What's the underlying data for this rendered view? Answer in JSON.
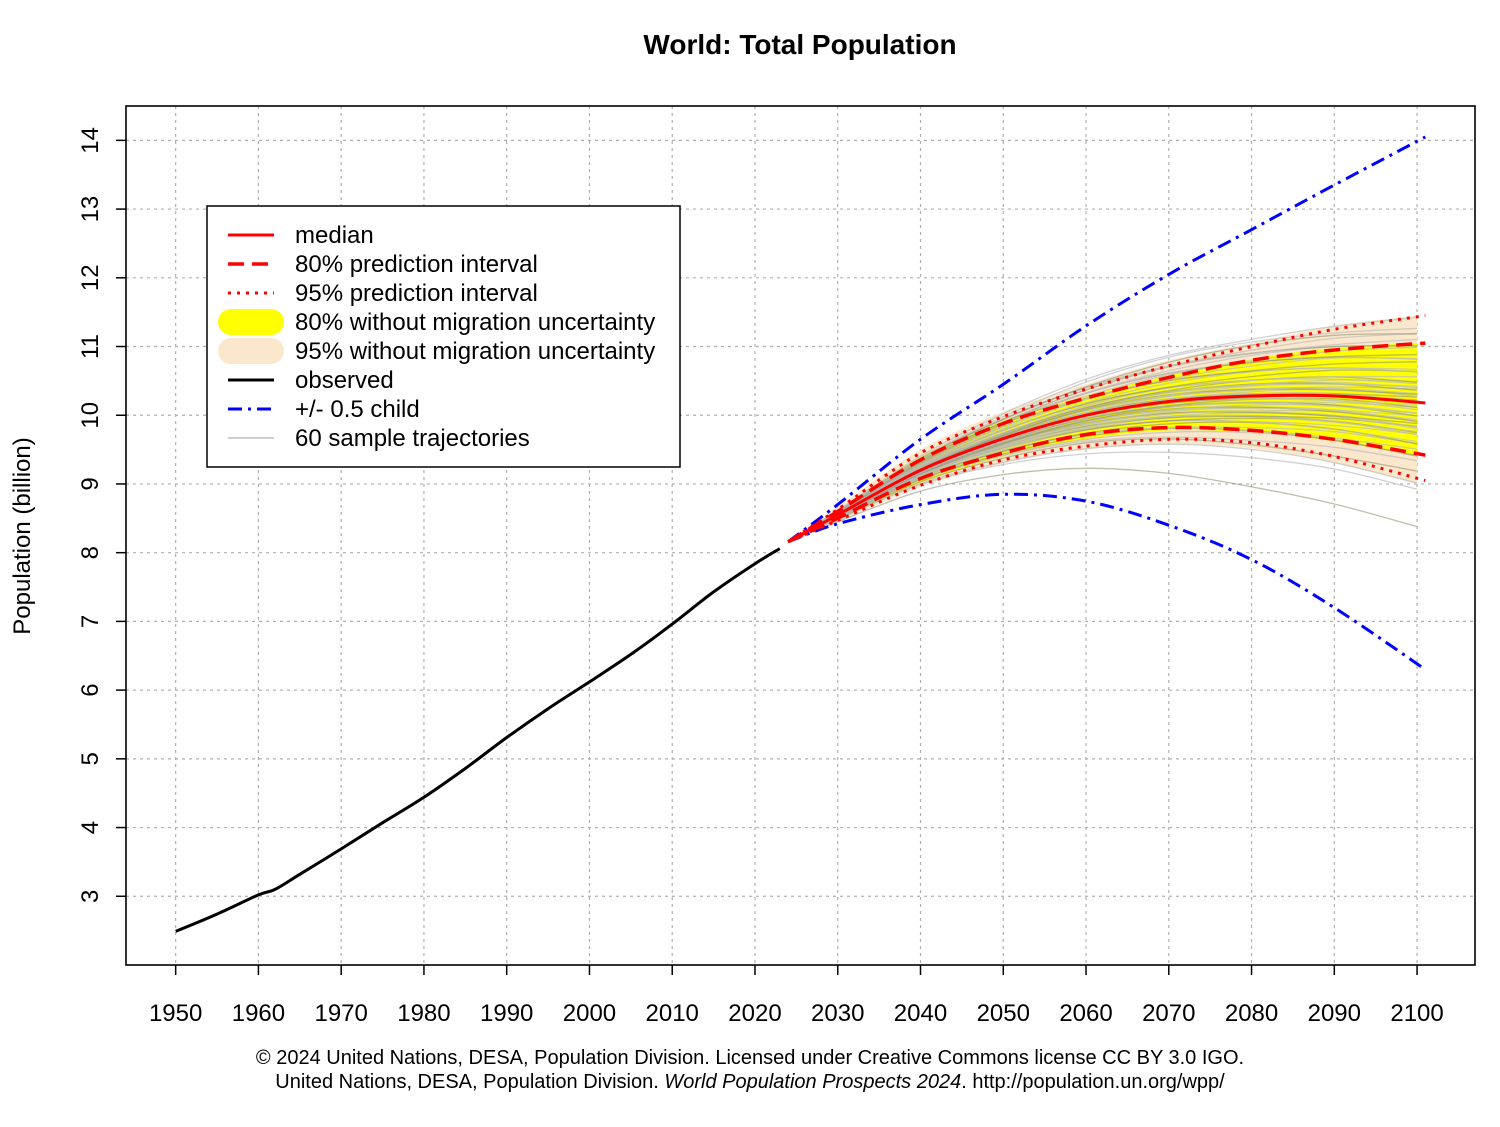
{
  "chart_data": {
    "type": "line",
    "title": "World: Total Population",
    "ylabel": "Population (billion)",
    "xlabel": "",
    "xlim": [
      1944,
      2107
    ],
    "ylim": [
      2.0,
      14.5
    ],
    "x_ticks": [
      1950,
      1960,
      1970,
      1980,
      1990,
      2000,
      2010,
      2020,
      2030,
      2040,
      2050,
      2060,
      2070,
      2080,
      2090,
      2100
    ],
    "y_ticks": [
      3,
      4,
      5,
      6,
      7,
      8,
      9,
      10,
      11,
      12,
      13,
      14
    ],
    "grid": true,
    "legend_position": "top-left",
    "legend": [
      {
        "label": "median",
        "key": "median"
      },
      {
        "label": "80% prediction interval",
        "key": "pi80"
      },
      {
        "label": "95% prediction interval",
        "key": "pi95"
      },
      {
        "label": "80% without migration uncertainty",
        "key": "nm80"
      },
      {
        "label": "95% without migration uncertainty",
        "key": "nm95"
      },
      {
        "label": "observed",
        "key": "observed"
      },
      {
        "label": "+/- 0.5 child",
        "key": "halfchild"
      },
      {
        "label": "60 sample trajectories",
        "key": "samples"
      }
    ],
    "colors": {
      "median": "#ff0000",
      "interval": "#ff0000",
      "observed": "#000000",
      "halfchild": "#0000ff",
      "nm80": "#ffff00",
      "nm95": "#fbe7cc",
      "samples": "#bdbdbd"
    },
    "series": {
      "observed": {
        "x": [
          1950,
          1955,
          1960,
          1962,
          1965,
          1970,
          1975,
          1980,
          1985,
          1990,
          1995,
          2000,
          2005,
          2010,
          2015,
          2020,
          2023
        ],
        "y": [
          2.49,
          2.74,
          3.02,
          3.1,
          3.32,
          3.69,
          4.07,
          4.44,
          4.86,
          5.31,
          5.73,
          6.12,
          6.52,
          6.96,
          7.43,
          7.84,
          8.06
        ]
      },
      "median": {
        "x": [
          2024,
          2030,
          2040,
          2050,
          2060,
          2070,
          2080,
          2090,
          2101
        ],
        "y": [
          8.16,
          8.55,
          9.2,
          9.66,
          10.0,
          10.2,
          10.28,
          10.28,
          10.18
        ]
      },
      "pi80_upper": {
        "x": [
          2024,
          2030,
          2040,
          2050,
          2060,
          2070,
          2080,
          2090,
          2101
        ],
        "y": [
          8.16,
          8.6,
          9.35,
          9.88,
          10.25,
          10.55,
          10.8,
          10.95,
          11.05
        ]
      },
      "pi80_lower": {
        "x": [
          2024,
          2030,
          2040,
          2050,
          2060,
          2070,
          2080,
          2090,
          2101
        ],
        "y": [
          8.16,
          8.5,
          9.08,
          9.45,
          9.72,
          9.82,
          9.78,
          9.65,
          9.42
        ]
      },
      "pi95_upper": {
        "x": [
          2024,
          2030,
          2040,
          2050,
          2060,
          2070,
          2080,
          2090,
          2101
        ],
        "y": [
          8.16,
          8.63,
          9.45,
          9.98,
          10.38,
          10.72,
          11.0,
          11.25,
          11.45
        ]
      },
      "pi95_lower": {
        "x": [
          2024,
          2030,
          2040,
          2050,
          2060,
          2070,
          2080,
          2090,
          2101
        ],
        "y": [
          8.16,
          8.47,
          8.98,
          9.35,
          9.55,
          9.65,
          9.6,
          9.4,
          9.05
        ]
      },
      "halfchild_upper": {
        "x": [
          2024,
          2030,
          2040,
          2050,
          2060,
          2070,
          2080,
          2090,
          2101
        ],
        "y": [
          8.16,
          8.7,
          9.65,
          10.45,
          11.3,
          12.05,
          12.7,
          13.35,
          14.05
        ]
      },
      "halfchild_lower": {
        "x": [
          2024,
          2030,
          2040,
          2050,
          2060,
          2070,
          2080,
          2090,
          2101
        ],
        "y": [
          8.16,
          8.42,
          8.7,
          8.85,
          8.75,
          8.4,
          7.9,
          7.2,
          6.3
        ]
      },
      "nm80_upper": {
        "x": [
          2024,
          2030,
          2040,
          2050,
          2060,
          2070,
          2080,
          2090,
          2100
        ],
        "y": [
          8.16,
          8.62,
          9.4,
          9.92,
          10.28,
          10.58,
          10.82,
          10.98,
          11.05
        ]
      },
      "nm80_lower": {
        "x": [
          2024,
          2030,
          2040,
          2050,
          2060,
          2070,
          2080,
          2090,
          2100
        ],
        "y": [
          8.16,
          8.48,
          9.02,
          9.4,
          9.65,
          9.78,
          9.75,
          9.62,
          9.4
        ]
      },
      "nm95_upper": {
        "x": [
          2024,
          2030,
          2040,
          2050,
          2060,
          2070,
          2080,
          2090,
          2100
        ],
        "y": [
          8.16,
          8.66,
          9.5,
          10.05,
          10.45,
          10.8,
          11.05,
          11.3,
          11.45
        ]
      },
      "nm95_lower": {
        "x": [
          2024,
          2030,
          2040,
          2050,
          2060,
          2070,
          2080,
          2090,
          2100
        ],
        "y": [
          8.16,
          8.45,
          8.95,
          9.3,
          9.5,
          9.58,
          9.52,
          9.3,
          9.0
        ]
      },
      "sample_trajectories": {
        "x": [
          2024,
          2030,
          2040,
          2050,
          2060,
          2070,
          2080,
          2090,
          2100
        ],
        "y_2100_ends": [
          8.35,
          8.9,
          9.05,
          9.2,
          9.3,
          9.4,
          9.45,
          9.5,
          9.55,
          9.6,
          9.65,
          9.7,
          9.72,
          9.75,
          9.78,
          9.8,
          9.82,
          9.85,
          9.88,
          9.9,
          9.92,
          9.95,
          9.97,
          10.0,
          10.02,
          10.05,
          10.08,
          10.1,
          10.12,
          10.15,
          10.18,
          10.2,
          10.22,
          10.25,
          10.28,
          10.3,
          10.33,
          10.35,
          10.38,
          10.4,
          10.43,
          10.45,
          10.48,
          10.5,
          10.55,
          10.6,
          10.65,
          10.7,
          10.75,
          10.8,
          10.85,
          10.9,
          10.95,
          11.0,
          11.05,
          11.1,
          11.15,
          11.2,
          11.3,
          11.4
        ]
      }
    }
  },
  "footer": {
    "line1": "© 2024 United Nations, DESA, Population Division. Licensed under Creative Commons license CC BY 3.0 IGO.",
    "line2_prefix": "United Nations, DESA, Population Division. ",
    "line2_italic": "World Population Prospects 2024",
    "line2_suffix": ". http://population.un.org/wpp/"
  }
}
